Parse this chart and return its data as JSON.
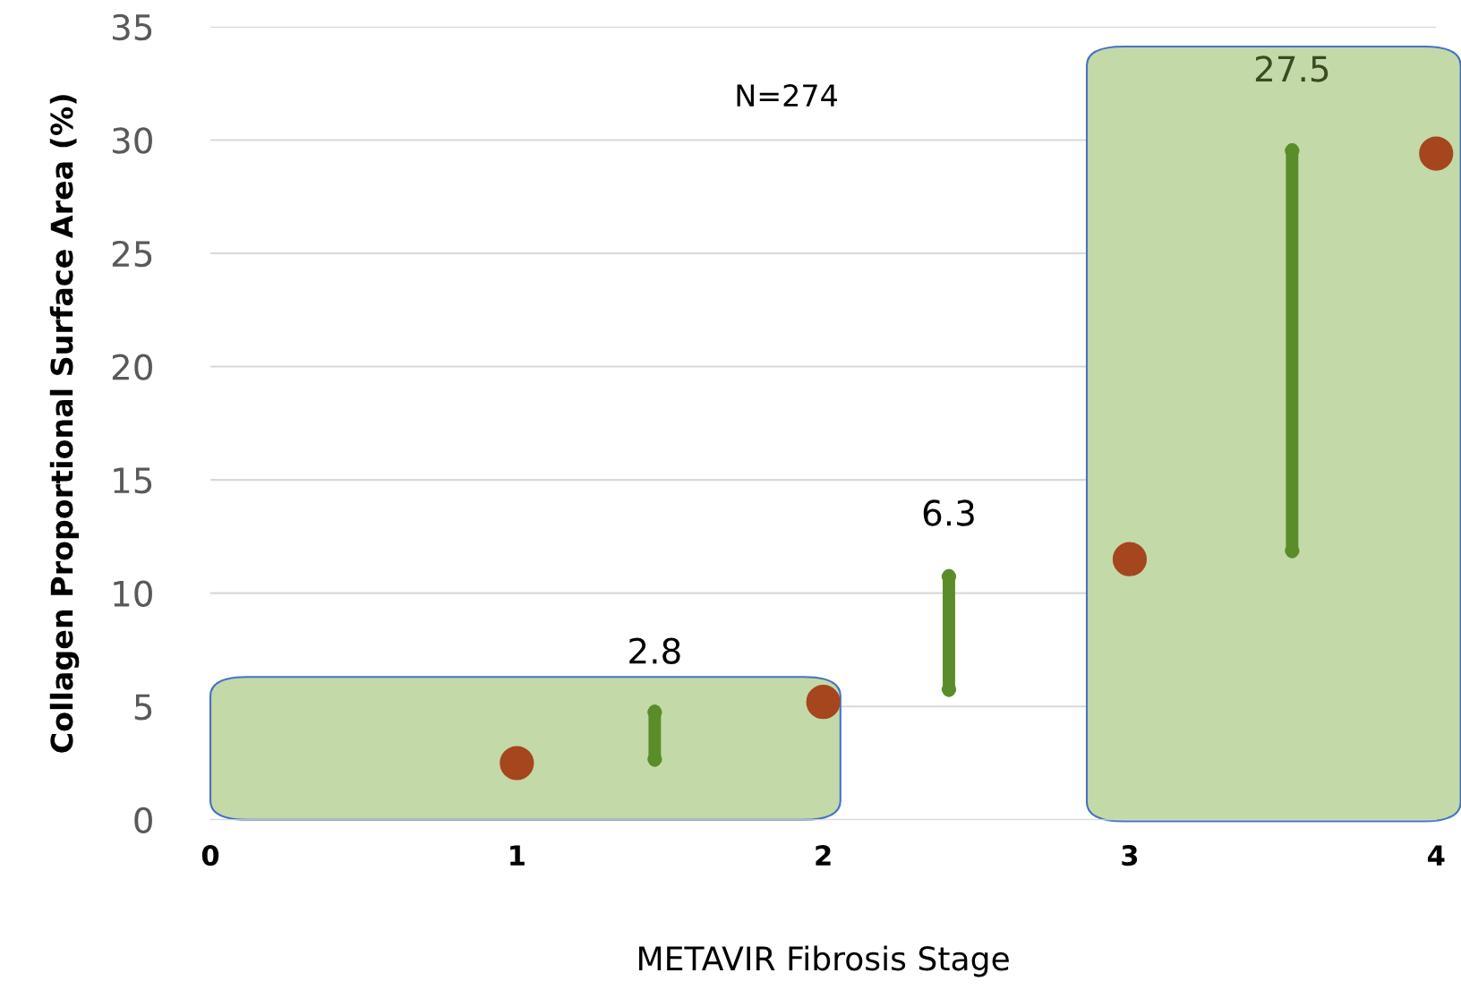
{
  "chart_data": {
    "type": "scatter",
    "xlabel": "METAVIR Fibrosis Stage",
    "ylabel": "Collagen Proportional Surface Area (%)",
    "x": [
      1,
      2,
      3,
      4
    ],
    "series": [
      {
        "color": "#a5461f",
        "values": [
          2.5,
          5.2,
          11.5,
          29.4
        ]
      }
    ],
    "marker": "circle",
    "xlim": [
      0,
      4
    ],
    "xticks": [
      0,
      1,
      2,
      3,
      4
    ],
    "ylim": [
      0,
      35
    ],
    "yticks": [
      0,
      5,
      10,
      15,
      20,
      25,
      30,
      35
    ],
    "grid": "y",
    "legend": false,
    "annotations": [
      "N=274",
      "2.8",
      "6.3",
      "27.5"
    ]
  }
}
